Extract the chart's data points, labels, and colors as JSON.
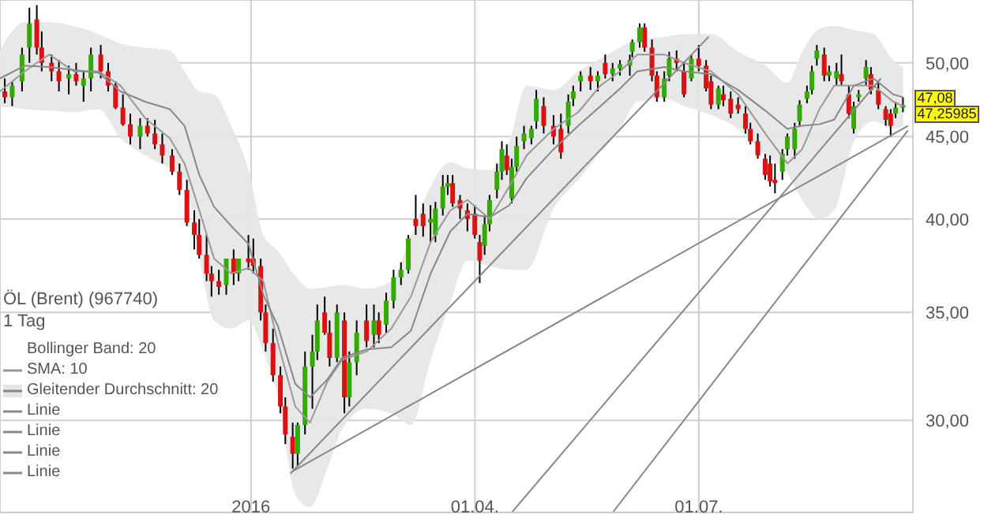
{
  "chart_data": {
    "type": "candlestick",
    "title": "ÖL (Brent) (967740)",
    "subtitle": "1 Tag",
    "x": [
      "2015-09-23",
      "2015-09-26",
      "2015-09-30",
      "2015-10-03",
      "2015-10-06",
      "2015-10-08",
      "2015-10-12",
      "2015-10-15",
      "2015-10-19",
      "2015-10-22",
      "2015-10-25",
      "2015-10-28",
      "2015-11-01",
      "2015-11-04",
      "2015-11-07",
      "2015-11-10",
      "2015-11-13",
      "2015-11-17",
      "2015-11-20",
      "2015-11-23",
      "2015-11-26",
      "2015-11-30",
      "2015-12-03",
      "2015-12-06",
      "2015-12-09",
      "2015-12-11",
      "2015-12-14",
      "2015-12-16",
      "2015-12-19",
      "2015-12-22",
      "2015-12-25",
      "2015-12-27",
      "2015-12-31",
      "2016-01-02",
      "2016-01-05",
      "2016-01-07",
      "2016-01-10",
      "2016-01-13",
      "2016-01-15",
      "2016-01-18",
      "2016-01-20",
      "2016-01-23",
      "2016-01-26",
      "2016-01-28",
      "2016-01-31",
      "2016-02-02",
      "2016-02-05",
      "2016-02-08",
      "2016-02-10",
      "2016-02-13",
      "2016-02-17",
      "2016-02-20",
      "2016-02-22",
      "2016-02-25",
      "2016-02-28",
      "2016-03-02",
      "2016-03-05",
      "2016-03-08",
      "2016-03-11",
      "2016-03-14",
      "2016-03-16",
      "2016-03-19",
      "2016-03-21",
      "2016-03-23",
      "2016-03-26",
      "2016-03-29",
      "2016-04-01",
      "2016-04-03",
      "2016-04-05",
      "2016-04-07",
      "2016-04-10",
      "2016-04-12",
      "2016-04-14",
      "2016-04-16",
      "2016-04-18",
      "2016-04-21",
      "2016-04-24",
      "2016-04-26",
      "2016-04-29",
      "2016-05-03",
      "2016-05-06",
      "2016-05-09",
      "2016-05-11",
      "2016-05-14",
      "2016-05-18",
      "2016-05-21",
      "2016-05-24",
      "2016-05-27",
      "2016-05-30",
      "2016-06-03",
      "2016-06-04",
      "2016-06-07",
      "2016-06-09",
      "2016-06-12",
      "2016-06-14",
      "2016-06-17",
      "2016-06-19",
      "2016-06-22",
      "2016-06-25",
      "2016-06-28",
      "2016-07-01",
      "2016-07-04",
      "2016-07-06",
      "2016-07-09",
      "2016-07-11",
      "2016-07-14",
      "2016-07-17",
      "2016-07-20",
      "2016-07-22",
      "2016-07-25",
      "2016-07-28",
      "2016-07-30",
      "2016-08-01",
      "2016-08-04",
      "2016-08-06",
      "2016-08-09",
      "2016-08-11",
      "2016-08-14",
      "2016-08-16",
      "2016-08-18",
      "2016-08-21",
      "2016-08-23",
      "2016-08-26",
      "2016-08-28",
      "2016-08-31",
      "2016-09-02",
      "2016-09-04",
      "2016-09-07",
      "2016-09-09",
      "2016-09-12",
      "2016-09-15",
      "2016-09-17",
      "2016-09-19",
      "2016-09-22"
    ],
    "ohlc": [
      [
        48.0,
        48.9,
        47.2,
        47.6
      ],
      [
        47.6,
        48.7,
        47.0,
        48.4
      ],
      [
        48.7,
        51.1,
        48.0,
        50.6
      ],
      [
        51.1,
        54.1,
        50.0,
        52.9
      ],
      [
        53.2,
        54.3,
        50.6,
        51.1
      ],
      [
        51.1,
        52.3,
        49.4,
        50.0
      ],
      [
        50.0,
        50.6,
        48.7,
        49.4
      ],
      [
        49.4,
        50.2,
        48.0,
        48.7
      ],
      [
        48.9,
        49.8,
        47.8,
        49.2
      ],
      [
        49.2,
        50.0,
        48.4,
        48.7
      ],
      [
        48.4,
        49.4,
        47.3,
        48.9
      ],
      [
        48.9,
        51.1,
        48.0,
        50.6
      ],
      [
        50.6,
        51.3,
        48.9,
        49.4
      ],
      [
        49.4,
        50.0,
        48.0,
        48.4
      ],
      [
        48.4,
        48.7,
        46.8,
        46.9
      ],
      [
        46.9,
        47.8,
        45.7,
        45.8
      ],
      [
        45.8,
        46.5,
        44.5,
        45.0
      ],
      [
        45.0,
        46.2,
        44.2,
        45.7
      ],
      [
        45.7,
        46.2,
        45.0,
        45.2
      ],
      [
        45.2,
        46.1,
        44.2,
        44.5
      ],
      [
        44.5,
        45.2,
        43.3,
        43.8
      ],
      [
        43.8,
        44.2,
        42.6,
        42.8
      ],
      [
        42.8,
        43.3,
        41.4,
        41.7
      ],
      [
        41.7,
        42.3,
        39.6,
        39.8
      ],
      [
        39.8,
        40.5,
        38.3,
        39.1
      ],
      [
        39.1,
        40.0,
        37.8,
        38.0
      ],
      [
        38.0,
        39.1,
        36.6,
        37.0
      ],
      [
        37.0,
        37.4,
        35.8,
        36.6
      ],
      [
        36.6,
        37.2,
        35.9,
        36.3
      ],
      [
        36.4,
        37.8,
        35.9,
        37.8
      ],
      [
        37.8,
        38.3,
        36.4,
        37.0
      ],
      [
        37.0,
        37.8,
        36.6,
        37.8
      ],
      [
        37.8,
        39.1,
        37.2,
        37.6
      ],
      [
        37.8,
        38.9,
        37.0,
        37.4
      ],
      [
        37.4,
        37.8,
        34.6,
        35.0
      ],
      [
        35.0,
        35.4,
        33.1,
        33.5
      ],
      [
        33.5,
        34.2,
        31.7,
        32.0
      ],
      [
        32.0,
        32.4,
        30.3,
        30.6
      ],
      [
        30.6,
        31.0,
        29.0,
        29.4
      ],
      [
        29.3,
        29.9,
        28.0,
        28.6
      ],
      [
        28.6,
        29.9,
        28.1,
        29.8
      ],
      [
        29.8,
        33.1,
        29.4,
        32.4
      ],
      [
        32.4,
        33.9,
        30.5,
        33.1
      ],
      [
        33.1,
        35.4,
        32.7,
        34.6
      ],
      [
        35.0,
        35.8,
        33.9,
        34.0
      ],
      [
        34.0,
        34.6,
        32.4,
        32.8
      ],
      [
        32.8,
        35.4,
        32.6,
        35.0
      ],
      [
        34.6,
        35.0,
        30.3,
        31.0
      ],
      [
        31.0,
        33.1,
        30.6,
        32.6
      ],
      [
        32.6,
        34.6,
        32.0,
        34.0
      ],
      [
        34.6,
        35.4,
        33.3,
        33.6
      ],
      [
        33.9,
        35.4,
        33.3,
        34.6
      ],
      [
        34.6,
        35.0,
        33.5,
        33.9
      ],
      [
        34.4,
        36.0,
        34.0,
        35.6
      ],
      [
        35.6,
        37.2,
        35.2,
        36.8
      ],
      [
        36.8,
        37.6,
        36.4,
        37.2
      ],
      [
        37.2,
        39.1,
        37.0,
        38.9
      ],
      [
        40.0,
        41.4,
        39.1,
        39.6
      ],
      [
        40.3,
        40.9,
        39.0,
        39.6
      ],
      [
        39.8,
        40.8,
        38.7,
        40.0
      ],
      [
        39.1,
        41.0,
        38.7,
        40.6
      ],
      [
        40.6,
        42.6,
        40.2,
        41.9
      ],
      [
        41.9,
        42.6,
        41.4,
        42.1
      ],
      [
        42.1,
        42.6,
        40.7,
        40.9
      ],
      [
        41.1,
        41.4,
        40.0,
        40.6
      ],
      [
        40.5,
        40.9,
        39.3,
        40.0
      ],
      [
        40.3,
        40.8,
        38.9,
        39.1
      ],
      [
        38.7,
        39.1,
        36.5,
        37.7
      ],
      [
        38.5,
        40.2,
        38.0,
        39.7
      ],
      [
        39.7,
        41.4,
        39.3,
        41.1
      ],
      [
        41.7,
        43.3,
        41.2,
        42.8
      ],
      [
        42.8,
        44.7,
        42.3,
        44.2
      ],
      [
        43.8,
        44.5,
        42.6,
        42.9
      ],
      [
        41.2,
        43.6,
        40.9,
        43.1
      ],
      [
        43.1,
        45.0,
        42.8,
        44.4
      ],
      [
        44.7,
        45.7,
        44.2,
        45.2
      ],
      [
        44.9,
        45.7,
        44.5,
        45.5
      ],
      [
        46.0,
        48.1,
        45.5,
        47.5
      ],
      [
        47.0,
        47.6,
        45.2,
        45.7
      ],
      [
        45.7,
        46.4,
        44.5,
        45.0
      ],
      [
        45.5,
        46.5,
        43.6,
        44.0
      ],
      [
        45.7,
        47.8,
        45.2,
        47.3
      ],
      [
        47.5,
        48.4,
        47.0,
        48.0
      ],
      [
        48.7,
        49.4,
        48.0,
        49.1
      ],
      [
        49.1,
        49.7,
        48.1,
        48.7
      ],
      [
        48.7,
        49.4,
        48.0,
        49.1
      ],
      [
        50.0,
        50.6,
        48.9,
        49.2
      ],
      [
        49.2,
        50.0,
        48.7,
        49.6
      ],
      [
        49.6,
        50.2,
        49.1,
        49.9
      ],
      [
        49.8,
        50.6,
        49.1,
        50.2
      ],
      [
        50.8,
        51.7,
        50.4,
        51.5
      ],
      [
        51.5,
        52.9,
        51.1,
        52.6
      ],
      [
        52.6,
        52.9,
        50.8,
        51.1
      ],
      [
        51.1,
        51.7,
        48.7,
        49.1
      ],
      [
        49.1,
        49.4,
        47.3,
        47.6
      ],
      [
        47.6,
        49.4,
        47.3,
        48.9
      ],
      [
        49.1,
        50.8,
        48.7,
        50.3
      ],
      [
        50.3,
        50.9,
        49.4,
        50.0
      ],
      [
        49.4,
        50.0,
        47.6,
        47.8
      ],
      [
        48.9,
        50.6,
        48.7,
        50.3
      ],
      [
        50.3,
        51.3,
        49.4,
        49.8
      ],
      [
        49.8,
        50.2,
        48.0,
        48.2
      ],
      [
        48.7,
        49.1,
        46.8,
        47.1
      ],
      [
        47.1,
        48.4,
        46.8,
        48.2
      ],
      [
        47.8,
        48.4,
        47.0,
        47.4
      ],
      [
        47.5,
        48.0,
        46.2,
        46.5
      ],
      [
        47.1,
        47.6,
        46.5,
        46.8
      ],
      [
        46.5,
        47.0,
        45.2,
        45.5
      ],
      [
        45.5,
        45.9,
        44.5,
        44.7
      ],
      [
        44.7,
        45.2,
        43.6,
        43.8
      ],
      [
        43.6,
        43.9,
        42.3,
        42.6
      ],
      [
        43.3,
        43.8,
        41.9,
        42.2
      ],
      [
        42.3,
        43.3,
        41.5,
        42.1
      ],
      [
        42.8,
        44.2,
        42.3,
        43.9
      ],
      [
        44.2,
        45.2,
        43.8,
        45.0
      ],
      [
        44.2,
        45.9,
        43.6,
        45.5
      ],
      [
        46.0,
        47.4,
        45.7,
        47.1
      ],
      [
        47.5,
        48.4,
        47.2,
        48.0
      ],
      [
        48.1,
        49.8,
        47.8,
        49.4
      ],
      [
        50.3,
        51.3,
        49.8,
        50.9
      ],
      [
        50.6,
        51.1,
        48.7,
        49.1
      ],
      [
        49.1,
        49.8,
        48.7,
        49.4
      ],
      [
        48.9,
        50.0,
        48.4,
        49.4
      ],
      [
        49.2,
        50.6,
        48.4,
        48.7
      ],
      [
        47.8,
        48.4,
        46.2,
        46.5
      ],
      [
        45.5,
        47.3,
        45.2,
        47.0
      ],
      [
        47.6,
        48.1,
        47.3,
        47.8
      ],
      [
        48.9,
        50.2,
        48.4,
        49.7
      ],
      [
        49.2,
        49.7,
        47.8,
        48.1
      ],
      [
        48.1,
        48.6,
        46.8,
        47.1
      ],
      [
        46.8,
        47.0,
        45.7,
        46.1
      ],
      [
        46.5,
        46.8,
        45.0,
        45.7
      ],
      [
        46.5,
        47.3,
        46.2,
        46.9
      ],
      [
        46.9,
        47.6,
        46.6,
        47.08
      ]
    ],
    "series": [
      {
        "name": "SMA: 10",
        "type": "line",
        "color": "#999999",
        "x": [
          "2015-09-21",
          "2015-10-01",
          "2015-10-11",
          "2015-10-21",
          "2015-10-31",
          "2015-11-09",
          "2015-11-19",
          "2015-11-29",
          "2015-12-05",
          "2015-12-11",
          "2015-12-17",
          "2015-12-24",
          "2015-12-31",
          "2016-01-06",
          "2016-01-12",
          "2016-01-19",
          "2016-01-25",
          "2016-02-01",
          "2016-02-07",
          "2016-02-17",
          "2016-02-27",
          "2016-03-06",
          "2016-03-14",
          "2016-03-22",
          "2016-03-29",
          "2016-04-07",
          "2016-04-15",
          "2016-04-22",
          "2016-05-03",
          "2016-05-13",
          "2016-05-22",
          "2016-05-30",
          "2016-06-06",
          "2016-06-17",
          "2016-06-25",
          "2016-07-06",
          "2016-07-17",
          "2016-07-28",
          "2016-08-06",
          "2016-08-12",
          "2016-08-19",
          "2016-08-25",
          "2016-09-02",
          "2016-09-10",
          "2016-09-18",
          "2016-09-22"
        ],
        "values": [
          48.0,
          49.4,
          50.6,
          49.4,
          49.4,
          48.4,
          46.2,
          44.9,
          43.3,
          40.5,
          37.8,
          37.0,
          37.3,
          36.6,
          33.5,
          30.6,
          29.9,
          31.7,
          32.7,
          33.1,
          34.2,
          35.8,
          38.7,
          40.5,
          41.1,
          40.0,
          41.9,
          43.8,
          45.5,
          46.6,
          48.4,
          49.4,
          50.6,
          50.6,
          50.0,
          49.4,
          47.8,
          45.2,
          43.3,
          44.2,
          46.8,
          48.4,
          48.4,
          48.4,
          47.3,
          47.0
        ]
      },
      {
        "name": "Gleitender Durchschnitt: 20",
        "type": "line",
        "color": "#888888",
        "x": [
          "2015-09-21",
          "2015-10-01",
          "2015-10-11",
          "2015-10-21",
          "2015-10-31",
          "2015-11-09",
          "2015-11-19",
          "2015-11-29",
          "2015-12-05",
          "2015-12-11",
          "2015-12-17",
          "2015-12-24",
          "2015-12-31",
          "2016-01-06",
          "2016-01-12",
          "2016-01-19",
          "2016-01-25",
          "2016-02-01",
          "2016-02-07",
          "2016-02-17",
          "2016-02-27",
          "2016-03-06",
          "2016-03-14",
          "2016-03-22",
          "2016-03-29",
          "2016-04-07",
          "2016-04-15",
          "2016-04-22",
          "2016-05-03",
          "2016-05-13",
          "2016-05-22",
          "2016-05-30",
          "2016-06-06",
          "2016-06-17",
          "2016-06-25",
          "2016-07-06",
          "2016-07-17",
          "2016-07-28",
          "2016-08-06",
          "2016-08-12",
          "2016-08-19",
          "2016-08-25",
          "2016-09-02",
          "2016-09-10",
          "2016-09-18",
          "2016-09-22"
        ],
        "values": [
          48.9,
          49.8,
          49.7,
          49.5,
          49.3,
          48.0,
          47.3,
          46.8,
          45.7,
          42.6,
          40.7,
          39.6,
          38.6,
          35.9,
          34.3,
          31.6,
          31.0,
          31.8,
          32.8,
          33.2,
          33.3,
          34.1,
          37.0,
          39.3,
          40.3,
          40.1,
          40.8,
          42.4,
          44.2,
          45.7,
          47.0,
          48.2,
          49.4,
          49.7,
          49.4,
          49.2,
          48.1,
          46.7,
          45.5,
          45.7,
          45.8,
          46.1,
          48.4,
          48.9,
          47.8,
          47.6
        ],
        "lower": [
          47.0,
          46.8,
          46.7,
          46.6,
          46.8,
          44.9,
          43.8,
          43.0,
          42.3,
          37.8,
          34.6,
          34.2,
          34.6,
          33.1,
          31.0,
          27.0,
          26.5,
          28.0,
          29.6,
          30.5,
          30.3,
          29.8,
          32.7,
          35.5,
          37.7,
          37.4,
          37.2,
          37.2,
          40.6,
          42.3,
          44.0,
          45.5,
          47.3,
          47.5,
          47.0,
          46.4,
          45.5,
          43.8,
          42.7,
          41.1,
          40.0,
          40.5,
          44.7,
          46.0,
          45.5,
          45.7
        ],
        "upper": [
          50.9,
          53.0,
          53.0,
          52.7,
          52.1,
          51.4,
          51.1,
          50.9,
          49.4,
          48.0,
          47.8,
          45.7,
          42.9,
          39.1,
          38.2,
          36.9,
          36.2,
          36.3,
          36.4,
          36.2,
          36.6,
          39.1,
          41.9,
          43.4,
          43.0,
          42.9,
          44.7,
          48.4,
          48.1,
          49.4,
          50.3,
          51.1,
          51.7,
          51.9,
          52.1,
          52.1,
          50.8,
          49.8,
          48.6,
          50.8,
          52.5,
          52.7,
          52.4,
          52.1,
          50.2,
          49.7
        ]
      },
      {
        "name": "Linie",
        "type": "line",
        "color": "#888888",
        "x": [
          "2016-01-18",
          "2016-09-24"
        ],
        "values": [
          27.9,
          45.7
        ]
      },
      {
        "name": "Linie",
        "type": "line",
        "color": "#888888",
        "x": [
          "2016-04-16",
          "2016-09-13"
        ],
        "values": [
          26.3,
          48.9
        ]
      },
      {
        "name": "Linie",
        "type": "line",
        "color": "#888888",
        "x": [
          "2016-01-17",
          "2016-07-05"
        ],
        "values": [
          27.8,
          51.9
        ]
      },
      {
        "name": "Linie",
        "type": "line",
        "color": "#888888",
        "x": [
          "2016-05-27",
          "2016-09-24"
        ],
        "values": [
          26.3,
          45.4
        ]
      }
    ],
    "xlim": [
      "2015-09-21",
      "2016-09-26"
    ],
    "xticks": [
      {
        "value": "2016-01-01",
        "label": "2016"
      },
      {
        "value": "2016-04-01",
        "label": "01.04."
      },
      {
        "value": "2016-07-01",
        "label": "01.07."
      }
    ],
    "ylim": [
      26.3,
      54.7
    ],
    "yticks": [
      {
        "value": 30,
        "label": "30,00"
      },
      {
        "value": 35,
        "label": "35,00"
      },
      {
        "value": 40,
        "label": "40,00"
      },
      {
        "value": 45,
        "label": "45,00"
      },
      {
        "value": 50,
        "label": "50,00"
      }
    ],
    "log": true,
    "grid": true,
    "legend": "bottom left",
    "annotations": [
      "Bollinger Band: 20",
      {
        "text": "47,08",
        "x": "2016-09-22",
        "y": 47.08
      },
      {
        "text": "47,25985",
        "x": "2016-09-22",
        "y": 47.25985
      }
    ]
  }
}
